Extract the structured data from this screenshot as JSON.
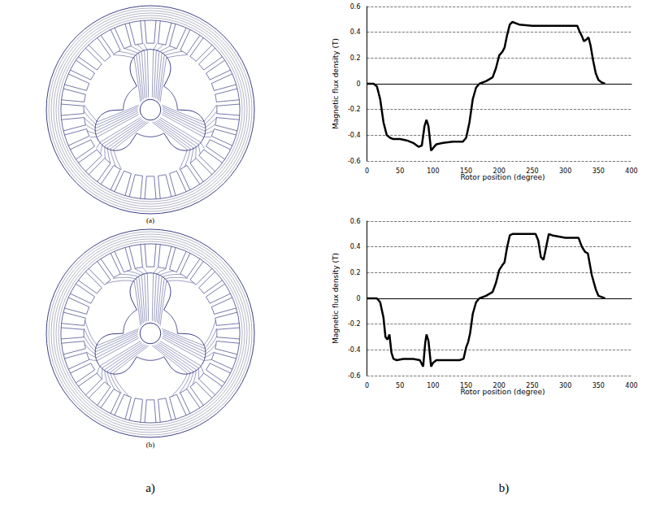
{
  "chart_data": [
    {
      "type": "line",
      "xlabel": "Rotor position (degree)",
      "ylabel": "Magnetic flux density (T)",
      "x": [
        0,
        10,
        15,
        20,
        25,
        30,
        35,
        40,
        50,
        60,
        70,
        78,
        83,
        87,
        90,
        93,
        97,
        100,
        105,
        115,
        130,
        145,
        150,
        155,
        160,
        165,
        170,
        180,
        190,
        195,
        200,
        205,
        208,
        212,
        216,
        220,
        230,
        250,
        280,
        300,
        318,
        322,
        325,
        328,
        331,
        335,
        338,
        342,
        346,
        350,
        355,
        360
      ],
      "values": [
        0,
        0,
        -0.02,
        -0.12,
        -0.3,
        -0.4,
        -0.42,
        -0.43,
        -0.43,
        -0.44,
        -0.46,
        -0.49,
        -0.48,
        -0.33,
        -0.28,
        -0.33,
        -0.52,
        -0.5,
        -0.47,
        -0.46,
        -0.45,
        -0.45,
        -0.42,
        -0.3,
        -0.12,
        -0.03,
        0,
        0.02,
        0.05,
        0.12,
        0.22,
        0.25,
        0.28,
        0.38,
        0.46,
        0.48,
        0.46,
        0.45,
        0.45,
        0.45,
        0.45,
        0.4,
        0.37,
        0.33,
        0.34,
        0.36,
        0.3,
        0.18,
        0.08,
        0.03,
        0.01,
        0
      ],
      "color": "#000000",
      "marker": "none",
      "line_style": "solid",
      "xlim": [
        0,
        400
      ],
      "xticks": [
        0,
        50,
        100,
        150,
        200,
        250,
        300,
        350,
        400
      ],
      "ylim": [
        -0.6,
        0.6
      ],
      "yticks": [
        -0.6,
        -0.4,
        -0.2,
        0,
        0.2,
        0.4,
        0.6
      ],
      "grid": true
    },
    {
      "type": "line",
      "xlabel": "Rotor position (degree)",
      "ylabel": "Magnetic flux density (T)",
      "x": [
        0,
        15,
        20,
        25,
        28,
        31,
        34,
        37,
        40,
        45,
        55,
        70,
        80,
        85,
        88,
        90,
        93,
        97,
        100,
        105,
        120,
        140,
        146,
        150,
        153,
        156,
        160,
        165,
        170,
        180,
        190,
        195,
        200,
        205,
        208,
        212,
        216,
        220,
        235,
        255,
        259,
        263,
        267,
        271,
        275,
        280,
        300,
        320,
        325,
        330,
        334,
        340,
        346,
        350,
        355,
        360
      ],
      "values": [
        0,
        0,
        -0.03,
        -0.15,
        -0.3,
        -0.32,
        -0.28,
        -0.42,
        -0.47,
        -0.48,
        -0.47,
        -0.47,
        -0.48,
        -0.53,
        -0.35,
        -0.28,
        -0.33,
        -0.53,
        -0.5,
        -0.48,
        -0.48,
        -0.48,
        -0.47,
        -0.38,
        -0.34,
        -0.27,
        -0.12,
        -0.03,
        0,
        0.02,
        0.05,
        0.12,
        0.22,
        0.26,
        0.28,
        0.4,
        0.49,
        0.5,
        0.5,
        0.5,
        0.45,
        0.32,
        0.3,
        0.4,
        0.5,
        0.49,
        0.47,
        0.47,
        0.4,
        0.36,
        0.35,
        0.18,
        0.07,
        0.02,
        0.01,
        0
      ],
      "color": "#000000",
      "marker": "none",
      "line_style": "solid",
      "xlim": [
        0,
        400
      ],
      "xticks": [
        0,
        50,
        100,
        150,
        200,
        250,
        300,
        350,
        400
      ],
      "ylim": [
        -0.6,
        0.6
      ],
      "yticks": [
        -0.6,
        -0.4,
        -0.2,
        0,
        0.2,
        0.4,
        0.6
      ],
      "grid": true
    }
  ],
  "figure": {
    "diagram_labels": [
      "(a)",
      "(b)"
    ],
    "column_labels": [
      "a)",
      "b)"
    ]
  }
}
